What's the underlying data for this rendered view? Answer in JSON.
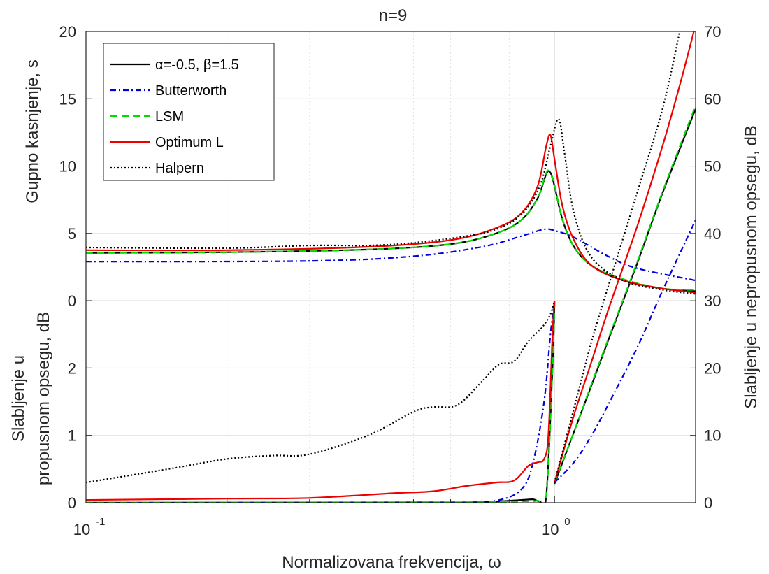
{
  "chart_data": {
    "type": "line",
    "title": "n=9",
    "xlabel": "Normalizovana frekvencija, ω",
    "xscale": "log",
    "xlim": [
      0.1,
      2
    ],
    "x_ticks": [
      {
        "value": 0.1,
        "label": "10",
        "exp": "-1"
      },
      {
        "value": 1,
        "label": "10",
        "exp": "0"
      }
    ],
    "grid": true,
    "legend_position": "top-left",
    "upper_panel": {
      "ylabel": "Gupno kasnjenje, s",
      "ylim": [
        0,
        20
      ],
      "yticks": [
        0,
        5,
        10,
        15,
        20
      ]
    },
    "lower_panel": {
      "ylabel_line1": "Slabljenje u",
      "ylabel_line2": "propusnom opsegu, dB",
      "ylim": [
        0,
        3
      ],
      "yticks": [
        0,
        1,
        2
      ]
    },
    "right_axis": {
      "ylabel": "Slabljenje u nepropusnom opsegu, dB",
      "ylim": [
        0,
        70
      ],
      "yticks": [
        0,
        10,
        20,
        30,
        40,
        50,
        60,
        70
      ]
    },
    "series": [
      {
        "name": "α=-0.5, β=1.5",
        "color": "#000000",
        "dash": "solid",
        "delay": [
          [
            0.1,
            3.55
          ],
          [
            0.2,
            3.6
          ],
          [
            0.4,
            3.8
          ],
          [
            0.6,
            4.2
          ],
          [
            0.75,
            5.0
          ],
          [
            0.85,
            6.0
          ],
          [
            0.92,
            7.6
          ],
          [
            0.96,
            9.4
          ],
          [
            0.98,
            9.5
          ],
          [
            1.0,
            8.5
          ],
          [
            1.04,
            6.0
          ],
          [
            1.1,
            4.0
          ],
          [
            1.2,
            2.6
          ],
          [
            1.4,
            1.5
          ],
          [
            1.7,
            0.9
          ],
          [
            2.0,
            0.7
          ]
        ],
        "passband": [
          [
            0.1,
            0.0
          ],
          [
            0.5,
            0.005
          ],
          [
            0.7,
            0.01
          ],
          [
            0.85,
            0.04
          ],
          [
            0.9,
            0.05
          ],
          [
            0.93,
            0.02
          ],
          [
            0.96,
            0.1
          ],
          [
            0.99,
            2.0
          ],
          [
            1.0,
            3.0
          ]
        ],
        "stopband": [
          [
            1.0,
            2.8
          ],
          [
            1.1,
            10.5
          ],
          [
            1.2,
            17.5
          ],
          [
            1.3,
            24.0
          ],
          [
            1.5,
            35.5
          ],
          [
            1.7,
            46.0
          ],
          [
            2.0,
            58.5
          ]
        ]
      },
      {
        "name": "Butterworth",
        "color": "#0000dd",
        "dash": "dashdot",
        "delay": [
          [
            0.1,
            2.9
          ],
          [
            0.3,
            2.95
          ],
          [
            0.5,
            3.3
          ],
          [
            0.7,
            4.0
          ],
          [
            0.85,
            4.8
          ],
          [
            0.95,
            5.3
          ],
          [
            1.0,
            5.2
          ],
          [
            1.1,
            4.7
          ],
          [
            1.3,
            3.3
          ],
          [
            1.5,
            2.4
          ],
          [
            2.0,
            1.5
          ]
        ],
        "passband": [
          [
            0.1,
            0.0
          ],
          [
            0.6,
            0.002
          ],
          [
            0.75,
            0.03
          ],
          [
            0.85,
            0.2
          ],
          [
            0.9,
            0.6
          ],
          [
            0.95,
            1.5
          ],
          [
            0.98,
            2.5
          ],
          [
            1.0,
            3.0
          ]
        ],
        "stopband": [
          [
            1.0,
            3.0
          ],
          [
            1.1,
            6.0
          ],
          [
            1.2,
            10.0
          ],
          [
            1.3,
            14.5
          ],
          [
            1.5,
            23.0
          ],
          [
            1.7,
            31.5
          ],
          [
            2.0,
            42.0
          ]
        ]
      },
      {
        "name": "LSM",
        "color": "#00dd00",
        "dash": "dashed",
        "delay": [
          [
            0.1,
            3.55
          ],
          [
            0.2,
            3.6
          ],
          [
            0.4,
            3.8
          ],
          [
            0.6,
            4.2
          ],
          [
            0.75,
            5.0
          ],
          [
            0.85,
            6.0
          ],
          [
            0.92,
            7.6
          ],
          [
            0.96,
            9.5
          ],
          [
            0.98,
            9.5
          ],
          [
            1.0,
            8.6
          ],
          [
            1.04,
            6.0
          ],
          [
            1.1,
            4.0
          ],
          [
            1.2,
            2.6
          ],
          [
            1.4,
            1.6
          ],
          [
            1.7,
            0.9
          ],
          [
            2.0,
            0.8
          ]
        ],
        "passband": [
          [
            0.1,
            0.0
          ],
          [
            0.5,
            0.003
          ],
          [
            0.7,
            0.008
          ],
          [
            0.85,
            0.02
          ],
          [
            0.92,
            0.03
          ],
          [
            0.96,
            0.1
          ],
          [
            0.99,
            2.0
          ],
          [
            1.0,
            3.0
          ]
        ],
        "stopband": [
          [
            1.0,
            3.0
          ],
          [
            1.1,
            10.5
          ],
          [
            1.2,
            17.7
          ],
          [
            1.3,
            24.2
          ],
          [
            1.5,
            35.7
          ],
          [
            1.7,
            46.2
          ],
          [
            2.0,
            59.0
          ]
        ]
      },
      {
        "name": "Optimum L",
        "color": "#ee0000",
        "dash": "solid",
        "delay": [
          [
            0.1,
            3.75
          ],
          [
            0.2,
            3.75
          ],
          [
            0.4,
            4.0
          ],
          [
            0.6,
            4.5
          ],
          [
            0.75,
            5.4
          ],
          [
            0.85,
            6.5
          ],
          [
            0.92,
            8.5
          ],
          [
            0.96,
            11.5
          ],
          [
            0.98,
            12.3
          ],
          [
            1.0,
            10.5
          ],
          [
            1.04,
            7.0
          ],
          [
            1.1,
            4.5
          ],
          [
            1.2,
            2.6
          ],
          [
            1.4,
            1.5
          ],
          [
            1.7,
            0.9
          ],
          [
            2.0,
            0.6
          ]
        ],
        "passband": [
          [
            0.1,
            0.04
          ],
          [
            0.2,
            0.06
          ],
          [
            0.3,
            0.07
          ],
          [
            0.45,
            0.14
          ],
          [
            0.55,
            0.17
          ],
          [
            0.65,
            0.25
          ],
          [
            0.75,
            0.3
          ],
          [
            0.82,
            0.33
          ],
          [
            0.88,
            0.55
          ],
          [
            0.92,
            0.6
          ],
          [
            0.95,
            0.65
          ],
          [
            0.97,
            1.0
          ],
          [
            0.99,
            2.5
          ],
          [
            1.0,
            3.0
          ]
        ],
        "stopband": [
          [
            1.0,
            3.0
          ],
          [
            1.1,
            13.0
          ],
          [
            1.2,
            21.0
          ],
          [
            1.3,
            28.5
          ],
          [
            1.5,
            41.0
          ],
          [
            1.7,
            53.0
          ],
          [
            1.85,
            62.0
          ],
          [
            2.0,
            71.0
          ]
        ]
      },
      {
        "name": "Halpern",
        "color": "#000000",
        "dash": "dotted",
        "delay": [
          [
            0.1,
            3.95
          ],
          [
            0.2,
            3.9
          ],
          [
            0.3,
            4.1
          ],
          [
            0.4,
            4.1
          ],
          [
            0.5,
            4.3
          ],
          [
            0.65,
            4.8
          ],
          [
            0.75,
            5.3
          ],
          [
            0.85,
            6.4
          ],
          [
            0.93,
            8.5
          ],
          [
            0.98,
            11.5
          ],
          [
            1.02,
            13.5
          ],
          [
            1.05,
            11.0
          ],
          [
            1.1,
            6.5
          ],
          [
            1.2,
            3.2
          ],
          [
            1.4,
            1.5
          ],
          [
            1.7,
            0.8
          ],
          [
            2.0,
            0.5
          ]
        ],
        "passband": [
          [
            0.1,
            0.3
          ],
          [
            0.15,
            0.5
          ],
          [
            0.2,
            0.65
          ],
          [
            0.25,
            0.7
          ],
          [
            0.3,
            0.72
          ],
          [
            0.4,
            1.0
          ],
          [
            0.5,
            1.35
          ],
          [
            0.55,
            1.42
          ],
          [
            0.62,
            1.45
          ],
          [
            0.7,
            1.8
          ],
          [
            0.76,
            2.05
          ],
          [
            0.82,
            2.1
          ],
          [
            0.88,
            2.4
          ],
          [
            0.94,
            2.6
          ],
          [
            0.98,
            2.8
          ],
          [
            1.0,
            3.0
          ]
        ],
        "stopband": [
          [
            1.0,
            3.0
          ],
          [
            1.1,
            14.0
          ],
          [
            1.2,
            24.0
          ],
          [
            1.3,
            32.0
          ],
          [
            1.5,
            46.0
          ],
          [
            1.7,
            58.5
          ],
          [
            1.85,
            70.0
          ]
        ]
      }
    ]
  }
}
